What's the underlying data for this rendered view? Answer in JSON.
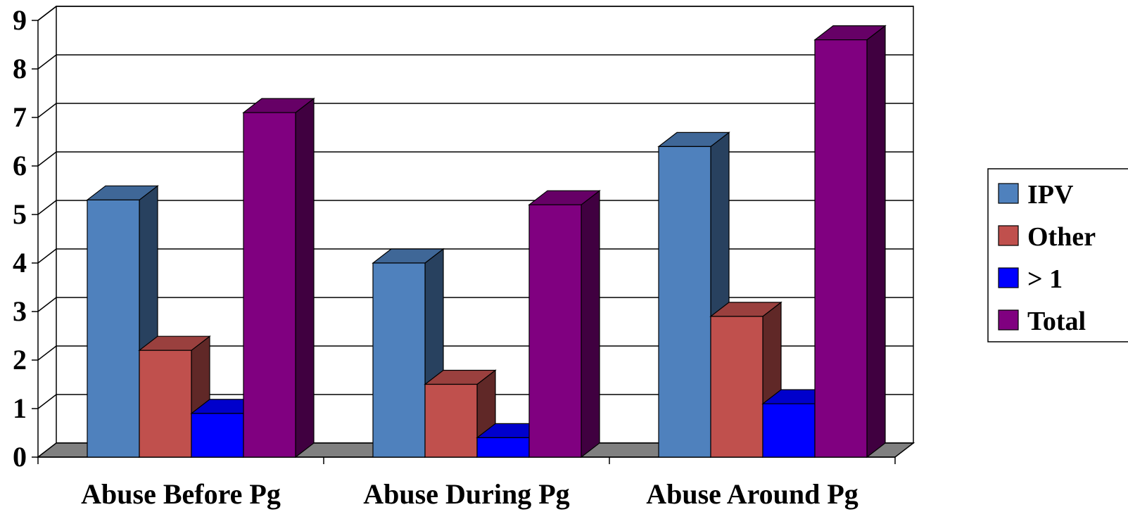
{
  "chart_data": {
    "type": "bar",
    "subtype": "3d-clustered-column",
    "categories": [
      "Abuse Before Pg",
      "Abuse During Pg",
      "Abuse Around Pg"
    ],
    "series": [
      {
        "name": "IPV",
        "values": [
          5.3,
          4.0,
          6.4
        ],
        "color": "#4f81bd"
      },
      {
        "name": "Other",
        "values": [
          2.2,
          1.5,
          2.9
        ],
        "color": "#c0504d"
      },
      {
        "name": "> 1",
        "values": [
          0.9,
          0.4,
          1.1
        ],
        "color": "#0000ff"
      },
      {
        "name": "Total",
        "values": [
          7.1,
          5.2,
          8.6
        ],
        "color": "#800080"
      }
    ],
    "y_ticks": [
      "0",
      "1",
      "2",
      "3",
      "4",
      "5",
      "6",
      "7",
      "8",
      "9"
    ],
    "ylim": [
      0,
      9
    ],
    "grid": true,
    "legend_position": "right"
  }
}
